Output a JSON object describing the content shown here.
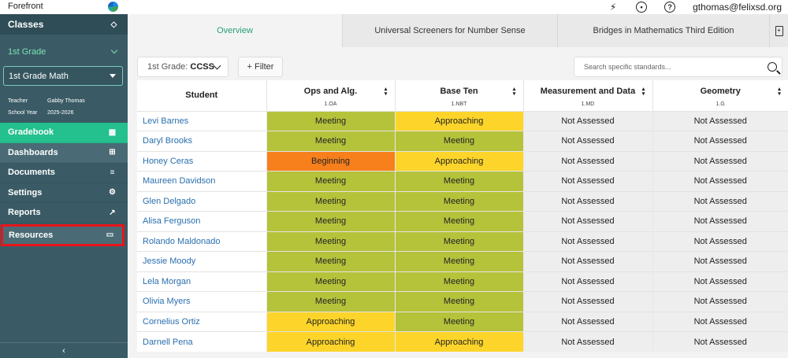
{
  "app": {
    "brand": "Forefront",
    "user_email": "gthomas@felixsd.org"
  },
  "top_icons": [
    "lightning-icon",
    "palette-icon",
    "help-icon"
  ],
  "sidebar": {
    "classes_label": "Classes",
    "grade_label": "1st Grade",
    "class_select": "1st Grade Math",
    "teacher_label": "Teacher",
    "teacher_value": "Gabby Thomas",
    "year_label": "School Year",
    "year_value": "2025-2026",
    "nav": [
      {
        "label": "Gradebook",
        "icon": "grid-icon"
      },
      {
        "label": "Dashboards",
        "icon": "dashboard-icon"
      },
      {
        "label": "Documents",
        "icon": "document-icon"
      },
      {
        "label": "Settings",
        "icon": "gear-icon"
      },
      {
        "label": "Reports",
        "icon": "trend-icon"
      },
      {
        "label": "Resources",
        "icon": "folder-icon"
      }
    ]
  },
  "tabs": [
    {
      "label": "Overview"
    },
    {
      "label": "Universal Screeners for Number Sense"
    },
    {
      "label": "Bridges in Mathematics Third Edition"
    }
  ],
  "toolbar": {
    "grade_prefix": "1st Grade:",
    "standard": "CCSS",
    "filter_label": "+ Filter",
    "search_placeholder": "Search specific standards..."
  },
  "table": {
    "student_header": "Student",
    "columns": [
      {
        "name": "Ops and Alg.",
        "code": "1.OA"
      },
      {
        "name": "Base Ten",
        "code": "1.NBT"
      },
      {
        "name": "Measurement and Data",
        "code": "1.MD"
      },
      {
        "name": "Geometry",
        "code": "1.G"
      }
    ],
    "rows": [
      {
        "student": "Levi Barnes",
        "cells": [
          "Meeting",
          "Approaching",
          "Not Assessed",
          "Not Assessed"
        ]
      },
      {
        "student": "Daryl Brooks",
        "cells": [
          "Meeting",
          "Meeting",
          "Not Assessed",
          "Not Assessed"
        ]
      },
      {
        "student": "Honey Ceras",
        "cells": [
          "Beginning",
          "Approaching",
          "Not Assessed",
          "Not Assessed"
        ]
      },
      {
        "student": "Maureen Davidson",
        "cells": [
          "Meeting",
          "Meeting",
          "Not Assessed",
          "Not Assessed"
        ]
      },
      {
        "student": "Glen Delgado",
        "cells": [
          "Meeting",
          "Meeting",
          "Not Assessed",
          "Not Assessed"
        ]
      },
      {
        "student": "Alisa Ferguson",
        "cells": [
          "Meeting",
          "Meeting",
          "Not Assessed",
          "Not Assessed"
        ]
      },
      {
        "student": "Rolando Maldonado",
        "cells": [
          "Meeting",
          "Meeting",
          "Not Assessed",
          "Not Assessed"
        ]
      },
      {
        "student": "Jessie Moody",
        "cells": [
          "Meeting",
          "Meeting",
          "Not Assessed",
          "Not Assessed"
        ]
      },
      {
        "student": "Lela Morgan",
        "cells": [
          "Meeting",
          "Meeting",
          "Not Assessed",
          "Not Assessed"
        ]
      },
      {
        "student": "Olivia Myers",
        "cells": [
          "Meeting",
          "Meeting",
          "Not Assessed",
          "Not Assessed"
        ]
      },
      {
        "student": "Cornelius Ortiz",
        "cells": [
          "Approaching",
          "Meeting",
          "Not Assessed",
          "Not Assessed"
        ]
      },
      {
        "student": "Darnell Pena",
        "cells": [
          "Approaching",
          "Approaching",
          "Not Assessed",
          "Not Assessed"
        ]
      }
    ]
  },
  "colors": {
    "meeting": "#b5c33b",
    "approaching": "#fdd52a",
    "beginning": "#f7801d",
    "not_assessed": "#eeeeee",
    "active_nav": "#24c08d",
    "highlight_outline": "#e8141a"
  }
}
